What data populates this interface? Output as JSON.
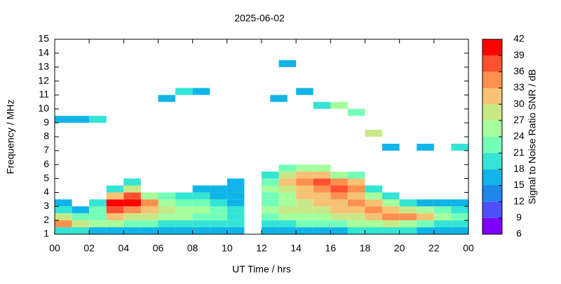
{
  "chart_data": {
    "type": "heatmap",
    "title": "2025-06-02",
    "xlabel": "UT Time / hrs",
    "ylabel": "Frequency / MHz",
    "xlim": [
      0,
      24
    ],
    "xticks": [
      {
        "value": 0,
        "label": "00"
      },
      {
        "value": 2,
        "label": "02"
      },
      {
        "value": 4,
        "label": "04"
      },
      {
        "value": 6,
        "label": "06"
      },
      {
        "value": 8,
        "label": "08"
      },
      {
        "value": 10,
        "label": "10"
      },
      12,
      14,
      16,
      18,
      20,
      22,
      {
        "value": 24,
        "label": "00"
      }
    ],
    "ylim": [
      1,
      15
    ],
    "yticks": [
      1,
      2,
      3,
      4,
      5,
      6,
      7,
      8,
      9,
      10,
      11,
      12,
      13,
      14,
      15
    ],
    "colorbar": {
      "label": "Signal to Noise Ratio SNR / dB",
      "ticks": [
        6,
        9,
        12,
        15,
        18,
        21,
        24,
        27,
        30,
        33,
        36,
        39,
        42
      ],
      "colors": [
        "#8000ff",
        "#4f4fff",
        "#2185f0",
        "#10b4e8",
        "#34e4d4",
        "#74ffb8",
        "#a4ff9c",
        "#c8e888",
        "#f6c274",
        "#ff9050",
        "#ff5030",
        "#ff0000"
      ]
    },
    "points": [
      {
        "x": 0,
        "y": 1,
        "value": 20
      },
      {
        "x": 0,
        "y": 1.5,
        "value": 33
      },
      {
        "x": 0,
        "y": 2,
        "value": 27
      },
      {
        "x": 0,
        "y": 2.5,
        "value": 20
      },
      {
        "x": 0,
        "y": 3,
        "value": 15
      },
      {
        "x": 1,
        "y": 1,
        "value": 18
      },
      {
        "x": 1,
        "y": 1.5,
        "value": 27
      },
      {
        "x": 1,
        "y": 2,
        "value": 21
      },
      {
        "x": 1,
        "y": 2.5,
        "value": 15
      },
      {
        "x": 2,
        "y": 1,
        "value": 16
      },
      {
        "x": 2,
        "y": 1.5,
        "value": 24
      },
      {
        "x": 2,
        "y": 2,
        "value": 22
      },
      {
        "x": 2,
        "y": 2.5,
        "value": 21
      },
      {
        "x": 2,
        "y": 3,
        "value": 18
      },
      {
        "x": 3,
        "y": 1,
        "value": 15
      },
      {
        "x": 3,
        "y": 1.5,
        "value": 24
      },
      {
        "x": 3,
        "y": 2,
        "value": 30
      },
      {
        "x": 3,
        "y": 2.5,
        "value": 36
      },
      {
        "x": 3,
        "y": 3,
        "value": 39
      },
      {
        "x": 3,
        "y": 3.5,
        "value": 30
      },
      {
        "x": 3,
        "y": 4,
        "value": 18
      },
      {
        "x": 4,
        "y": 1,
        "value": 15
      },
      {
        "x": 4,
        "y": 1.5,
        "value": 21
      },
      {
        "x": 4,
        "y": 2,
        "value": 27
      },
      {
        "x": 4,
        "y": 2.5,
        "value": 33
      },
      {
        "x": 4,
        "y": 3,
        "value": 39
      },
      {
        "x": 4,
        "y": 3.5,
        "value": 36
      },
      {
        "x": 4,
        "y": 4,
        "value": 27
      },
      {
        "x": 4,
        "y": 4.5,
        "value": 20
      },
      {
        "x": 5,
        "y": 1,
        "value": 15
      },
      {
        "x": 5,
        "y": 1.5,
        "value": 21
      },
      {
        "x": 5,
        "y": 2,
        "value": 27
      },
      {
        "x": 5,
        "y": 2.5,
        "value": 30
      },
      {
        "x": 5,
        "y": 3,
        "value": 33
      },
      {
        "x": 5,
        "y": 3.5,
        "value": 24
      },
      {
        "x": 6,
        "y": 1,
        "value": 15
      },
      {
        "x": 6,
        "y": 1.5,
        "value": 18
      },
      {
        "x": 6,
        "y": 2,
        "value": 24
      },
      {
        "x": 6,
        "y": 2.5,
        "value": 27
      },
      {
        "x": 6,
        "y": 3,
        "value": 24
      },
      {
        "x": 6,
        "y": 3.5,
        "value": 21
      },
      {
        "x": 7,
        "y": 1,
        "value": 15
      },
      {
        "x": 7,
        "y": 1.5,
        "value": 18
      },
      {
        "x": 7,
        "y": 2,
        "value": 24
      },
      {
        "x": 7,
        "y": 2.5,
        "value": 24
      },
      {
        "x": 7,
        "y": 3,
        "value": 21
      },
      {
        "x": 7,
        "y": 3.5,
        "value": 18
      },
      {
        "x": 8,
        "y": 1,
        "value": 15
      },
      {
        "x": 8,
        "y": 1.5,
        "value": 18
      },
      {
        "x": 8,
        "y": 2,
        "value": 21
      },
      {
        "x": 8,
        "y": 2.5,
        "value": 24
      },
      {
        "x": 8,
        "y": 3,
        "value": 21
      },
      {
        "x": 8,
        "y": 3.5,
        "value": 18
      },
      {
        "x": 8,
        "y": 4,
        "value": 15
      },
      {
        "x": 9,
        "y": 1,
        "value": 15
      },
      {
        "x": 9,
        "y": 1.5,
        "value": 18
      },
      {
        "x": 9,
        "y": 2,
        "value": 21
      },
      {
        "x": 9,
        "y": 2.5,
        "value": 21
      },
      {
        "x": 9,
        "y": 3,
        "value": 18
      },
      {
        "x": 9,
        "y": 3.5,
        "value": 15
      },
      {
        "x": 9,
        "y": 4,
        "value": 15
      },
      {
        "x": 10,
        "y": 1,
        "value": 15
      },
      {
        "x": 10,
        "y": 1.5,
        "value": 18
      },
      {
        "x": 10,
        "y": 2,
        "value": 18
      },
      {
        "x": 10,
        "y": 2.5,
        "value": 18
      },
      {
        "x": 10,
        "y": 3,
        "value": 15
      },
      {
        "x": 10,
        "y": 3.5,
        "value": 15
      },
      {
        "x": 10,
        "y": 4,
        "value": 15
      },
      {
        "x": 10,
        "y": 4.5,
        "value": 15
      },
      {
        "x": 12,
        "y": 1,
        "value": 15
      },
      {
        "x": 12,
        "y": 1.5,
        "value": 18
      },
      {
        "x": 12,
        "y": 2,
        "value": 21
      },
      {
        "x": 12,
        "y": 2.5,
        "value": 24
      },
      {
        "x": 12,
        "y": 3,
        "value": 21
      },
      {
        "x": 12,
        "y": 3.5,
        "value": 21
      },
      {
        "x": 12,
        "y": 4,
        "value": 24
      },
      {
        "x": 12,
        "y": 4.5,
        "value": 21
      },
      {
        "x": 12,
        "y": 5,
        "value": 18
      },
      {
        "x": 13,
        "y": 1,
        "value": 15
      },
      {
        "x": 13,
        "y": 1.5,
        "value": 18
      },
      {
        "x": 13,
        "y": 2,
        "value": 24
      },
      {
        "x": 13,
        "y": 2.5,
        "value": 27
      },
      {
        "x": 13,
        "y": 3,
        "value": 24
      },
      {
        "x": 13,
        "y": 3.5,
        "value": 24
      },
      {
        "x": 13,
        "y": 4,
        "value": 27
      },
      {
        "x": 13,
        "y": 4.5,
        "value": 30
      },
      {
        "x": 13,
        "y": 5,
        "value": 27
      },
      {
        "x": 13,
        "y": 5.5,
        "value": 21
      },
      {
        "x": 14,
        "y": 1,
        "value": 15
      },
      {
        "x": 14,
        "y": 1.5,
        "value": 21
      },
      {
        "x": 14,
        "y": 2,
        "value": 24
      },
      {
        "x": 14,
        "y": 2.5,
        "value": 27
      },
      {
        "x": 14,
        "y": 3,
        "value": 27
      },
      {
        "x": 14,
        "y": 3.5,
        "value": 30
      },
      {
        "x": 14,
        "y": 4,
        "value": 30
      },
      {
        "x": 14,
        "y": 4.5,
        "value": 33
      },
      {
        "x": 14,
        "y": 5,
        "value": 30
      },
      {
        "x": 14,
        "y": 5.5,
        "value": 24
      },
      {
        "x": 15,
        "y": 1,
        "value": 15
      },
      {
        "x": 15,
        "y": 1.5,
        "value": 21
      },
      {
        "x": 15,
        "y": 2,
        "value": 24
      },
      {
        "x": 15,
        "y": 2.5,
        "value": 27
      },
      {
        "x": 15,
        "y": 3,
        "value": 30
      },
      {
        "x": 15,
        "y": 3.5,
        "value": 30
      },
      {
        "x": 15,
        "y": 4,
        "value": 33
      },
      {
        "x": 15,
        "y": 4.5,
        "value": 36
      },
      {
        "x": 15,
        "y": 5,
        "value": 30
      },
      {
        "x": 15,
        "y": 5.5,
        "value": 24
      },
      {
        "x": 16,
        "y": 1,
        "value": 15
      },
      {
        "x": 16,
        "y": 1.5,
        "value": 21
      },
      {
        "x": 16,
        "y": 2,
        "value": 27
      },
      {
        "x": 16,
        "y": 2.5,
        "value": 30
      },
      {
        "x": 16,
        "y": 3,
        "value": 30
      },
      {
        "x": 16,
        "y": 3.5,
        "value": 33
      },
      {
        "x": 16,
        "y": 4,
        "value": 36
      },
      {
        "x": 16,
        "y": 4.5,
        "value": 33
      },
      {
        "x": 16,
        "y": 5,
        "value": 24
      },
      {
        "x": 17,
        "y": 1,
        "value": 18
      },
      {
        "x": 17,
        "y": 1.5,
        "value": 24
      },
      {
        "x": 17,
        "y": 2,
        "value": 27
      },
      {
        "x": 17,
        "y": 2.5,
        "value": 30
      },
      {
        "x": 17,
        "y": 3,
        "value": 33
      },
      {
        "x": 17,
        "y": 3.5,
        "value": 30
      },
      {
        "x": 17,
        "y": 4,
        "value": 33
      },
      {
        "x": 17,
        "y": 4.5,
        "value": 30
      },
      {
        "x": 17,
        "y": 5,
        "value": 21
      },
      {
        "x": 18,
        "y": 1,
        "value": 18
      },
      {
        "x": 18,
        "y": 1.5,
        "value": 24
      },
      {
        "x": 18,
        "y": 2,
        "value": 30
      },
      {
        "x": 18,
        "y": 2.5,
        "value": 33
      },
      {
        "x": 18,
        "y": 3,
        "value": 30
      },
      {
        "x": 18,
        "y": 3.5,
        "value": 24
      },
      {
        "x": 18,
        "y": 4,
        "value": 18
      },
      {
        "x": 19,
        "y": 1,
        "value": 18
      },
      {
        "x": 19,
        "y": 1.5,
        "value": 27
      },
      {
        "x": 19,
        "y": 2,
        "value": 33
      },
      {
        "x": 19,
        "y": 2.5,
        "value": 30
      },
      {
        "x": 19,
        "y": 3,
        "value": 24
      },
      {
        "x": 19,
        "y": 3.5,
        "value": 18
      },
      {
        "x": 20,
        "y": 1,
        "value": 18
      },
      {
        "x": 20,
        "y": 1.5,
        "value": 24
      },
      {
        "x": 20,
        "y": 2,
        "value": 33
      },
      {
        "x": 20,
        "y": 2.5,
        "value": 27
      },
      {
        "x": 20,
        "y": 3,
        "value": 18
      },
      {
        "x": 21,
        "y": 1,
        "value": 15
      },
      {
        "x": 21,
        "y": 1.5,
        "value": 21
      },
      {
        "x": 21,
        "y": 2,
        "value": 30
      },
      {
        "x": 21,
        "y": 2.5,
        "value": 24
      },
      {
        "x": 21,
        "y": 3,
        "value": 15
      },
      {
        "x": 22,
        "y": 1,
        "value": 15
      },
      {
        "x": 22,
        "y": 1.5,
        "value": 18
      },
      {
        "x": 22,
        "y": 2,
        "value": 24
      },
      {
        "x": 22,
        "y": 2.5,
        "value": 21
      },
      {
        "x": 22,
        "y": 3,
        "value": 15
      },
      {
        "x": 23,
        "y": 1,
        "value": 15
      },
      {
        "x": 23,
        "y": 1.5,
        "value": 18
      },
      {
        "x": 23,
        "y": 2,
        "value": 21
      },
      {
        "x": 23,
        "y": 2.5,
        "value": 18
      },
      {
        "x": 23,
        "y": 3,
        "value": 15
      },
      {
        "x": 0,
        "y": 9,
        "value": 15
      },
      {
        "x": 1,
        "y": 9,
        "value": 15
      },
      {
        "x": 2,
        "y": 9,
        "value": 18
      },
      {
        "x": 6,
        "y": 10.5,
        "value": 15
      },
      {
        "x": 7,
        "y": 11,
        "value": 18
      },
      {
        "x": 8,
        "y": 11,
        "value": 15
      },
      {
        "x": 12.5,
        "y": 10.5,
        "value": 15
      },
      {
        "x": 13,
        "y": 13,
        "value": 15
      },
      {
        "x": 14,
        "y": 11,
        "value": 15
      },
      {
        "x": 15,
        "y": 10,
        "value": 18
      },
      {
        "x": 16,
        "y": 10,
        "value": 24
      },
      {
        "x": 17,
        "y": 9.5,
        "value": 21
      },
      {
        "x": 18,
        "y": 8,
        "value": 27
      },
      {
        "x": 19,
        "y": 7,
        "value": 15
      },
      {
        "x": 21,
        "y": 7,
        "value": 15
      },
      {
        "x": 23,
        "y": 7,
        "value": 18
      }
    ]
  }
}
